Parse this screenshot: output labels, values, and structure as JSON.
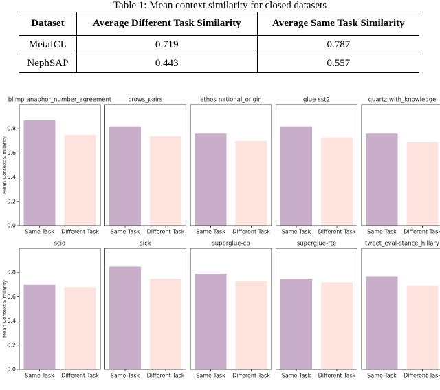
{
  "table": {
    "title": "Table 1: Mean context similarity for closed datasets",
    "header": [
      "Dataset",
      "Average Different Task Similarity",
      "Average Same Task Similarity"
    ],
    "rows": [
      [
        "MetaICL",
        "0.719",
        "0.787"
      ],
      [
        "NephSAP",
        "0.443",
        "0.557"
      ]
    ]
  },
  "chart_data": [
    {
      "type": "bar",
      "title": "blimp-anaphor_number_agreement",
      "categories": [
        "Same Task",
        "Different Task"
      ],
      "values": [
        0.87,
        0.75
      ],
      "colors": [
        "#c8aec9",
        "#fde3de"
      ],
      "ylabel": "Mean Context Similarity",
      "ylim": [
        0,
        1.0
      ],
      "yticks": [
        {
          "value": 0,
          "label": "0.0"
        },
        0.2,
        0.4,
        0.6,
        0.8
      ]
    },
    {
      "type": "bar",
      "title": "crows_pairs",
      "categories": [
        "Same Task",
        "Different Task"
      ],
      "values": [
        0.82,
        0.74
      ],
      "colors": [
        "#c8aec9",
        "#fde3de"
      ],
      "ylim": [
        0,
        1.0
      ]
    },
    {
      "type": "bar",
      "title": "ethos-national_origin",
      "categories": [
        "Same Task",
        "Different Task"
      ],
      "values": [
        0.76,
        0.7
      ],
      "colors": [
        "#c8aec9",
        "#fde3de"
      ],
      "ylim": [
        0,
        1.0
      ]
    },
    {
      "type": "bar",
      "title": "glue-sst2",
      "categories": [
        "Same Task",
        "Different Task"
      ],
      "values": [
        0.82,
        0.73
      ],
      "colors": [
        "#c8aec9",
        "#fde3de"
      ],
      "ylim": [
        0,
        1.0
      ]
    },
    {
      "type": "bar",
      "title": "quartz-with_knowledge",
      "categories": [
        "Same Task",
        "Different Task"
      ],
      "values": [
        0.76,
        0.69
      ],
      "colors": [
        "#c8aec9",
        "#fde3de"
      ],
      "ylim": [
        0,
        1.0
      ]
    },
    {
      "type": "bar",
      "title": "sciq",
      "categories": [
        "Same Task",
        "Different Task"
      ],
      "values": [
        0.7,
        0.68
      ],
      "colors": [
        "#c8aec9",
        "#fde3de"
      ],
      "ylabel": "Mean Context Similarity",
      "ylim": [
        0,
        1.0
      ],
      "yticks": [
        {
          "value": 0,
          "label": "0.0"
        },
        0.2,
        0.4,
        0.6,
        0.8
      ]
    },
    {
      "type": "bar",
      "title": "sick",
      "categories": [
        "Same Task",
        "Different Task"
      ],
      "values": [
        0.85,
        0.75
      ],
      "colors": [
        "#c8aec9",
        "#fde3de"
      ],
      "ylim": [
        0,
        1.0
      ]
    },
    {
      "type": "bar",
      "title": "superglue-cb",
      "categories": [
        "Same Task",
        "Different Task"
      ],
      "values": [
        0.79,
        0.73
      ],
      "colors": [
        "#c8aec9",
        "#fde3de"
      ],
      "ylim": [
        0,
        1.0
      ]
    },
    {
      "type": "bar",
      "title": "superglue-rte",
      "categories": [
        "Same Task",
        "Different Task"
      ],
      "values": [
        0.75,
        0.72
      ],
      "colors": [
        "#c8aec9",
        "#fde3de"
      ],
      "ylim": [
        0,
        1.0
      ]
    },
    {
      "type": "bar",
      "title": "tweet_eval-stance_hillary",
      "categories": [
        "Same Task",
        "Different Task"
      ],
      "values": [
        0.77,
        0.69
      ],
      "colors": [
        "#c8aec9",
        "#fde3de"
      ],
      "ylim": [
        0,
        1.0
      ]
    }
  ]
}
